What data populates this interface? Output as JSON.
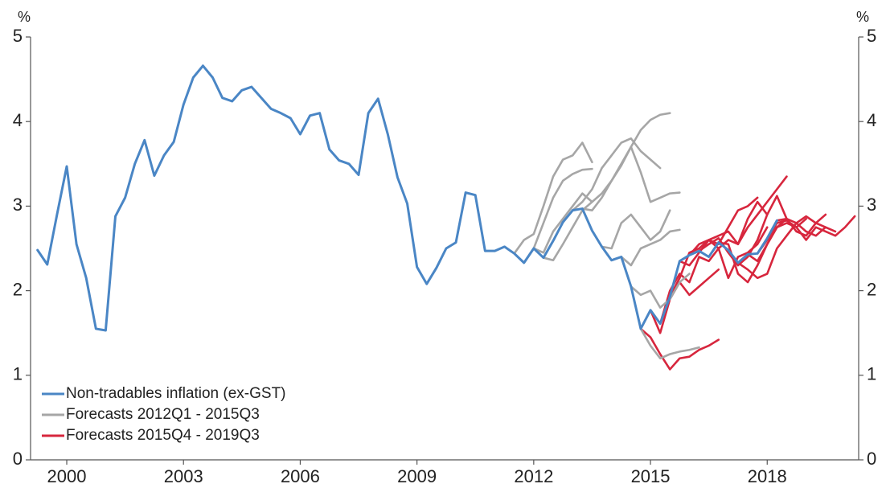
{
  "chart_data": {
    "type": "line",
    "y_unit": "%",
    "xlim": [
      1999.07,
      2020.35
    ],
    "xticks": [
      2000,
      2003,
      2006,
      2009,
      2012,
      2015,
      2018
    ],
    "ylim": [
      0,
      5
    ],
    "yticks": [
      0,
      1,
      2,
      3,
      4,
      5
    ],
    "grid": false,
    "legend": "lower left",
    "series": [
      {
        "name": "Non-tradables inflation (ex-GST)",
        "color": "#4a86c5",
        "x": [
          1999.25,
          1999.5,
          1999.75,
          2000,
          2000.25,
          2000.5,
          2000.75,
          2001,
          2001.25,
          2001.5,
          2001.75,
          2002,
          2002.25,
          2002.5,
          2002.75,
          2003,
          2003.25,
          2003.5,
          2003.75,
          2004,
          2004.25,
          2004.5,
          2004.75,
          2005,
          2005.25,
          2005.5,
          2005.75,
          2006,
          2006.25,
          2006.5,
          2006.75,
          2007,
          2007.25,
          2007.5,
          2007.75,
          2008,
          2008.25,
          2008.5,
          2008.75,
          2009,
          2009.25,
          2009.5,
          2009.75,
          2010,
          2010.25,
          2010.5,
          2010.75,
          2011,
          2011.25,
          2011.5,
          2011.75,
          2012,
          2012.25,
          2012.5,
          2012.75,
          2013,
          2013.25,
          2013.5,
          2013.75,
          2014,
          2014.25,
          2014.5,
          2014.75,
          2015,
          2015.25,
          2015.5,
          2015.75,
          2016,
          2016.25,
          2016.5,
          2016.75,
          2017,
          2017.25,
          2017.5,
          2017.75,
          2018,
          2018.25
        ],
        "values": [
          2.48,
          2.31,
          2.9,
          3.47,
          2.55,
          2.15,
          1.55,
          1.53,
          2.88,
          3.1,
          3.5,
          3.78,
          3.36,
          3.6,
          3.76,
          4.2,
          4.52,
          4.66,
          4.52,
          4.28,
          4.24,
          4.37,
          4.41,
          4.28,
          4.15,
          4.1,
          4.04,
          3.85,
          4.07,
          4.1,
          3.67,
          3.54,
          3.5,
          3.37,
          4.1,
          4.27,
          3.85,
          3.34,
          3.03,
          2.28,
          2.08,
          2.27,
          2.5,
          2.57,
          3.16,
          3.13,
          2.47,
          2.47,
          2.52,
          2.44,
          2.33,
          2.5,
          2.39,
          2.59,
          2.81,
          2.95,
          2.97,
          2.71,
          2.52,
          2.36,
          2.4,
          2.05,
          1.55,
          1.77,
          1.61,
          1.93,
          2.35,
          2.42,
          2.47,
          2.4,
          2.57,
          2.48,
          2.33,
          2.43,
          2.44,
          2.62,
          2.83
        ]
      },
      {
        "name": "Forecasts 2012Q1 - 2015Q3",
        "color": "#a6a6a6",
        "lines": [
          {
            "x": [
              2011.5,
              2011.75,
              2012,
              2012.25,
              2012.5,
              2012.75,
              2013,
              2013.25,
              2013.5
            ],
            "values": [
              2.44,
              2.6,
              2.67,
              3.0,
              3.35,
              3.55,
              3.6,
              3.75,
              3.52
            ]
          },
          {
            "x": [
              2011.75,
              2012,
              2012.25,
              2012.5,
              2012.75,
              2013,
              2013.25,
              2013.5
            ],
            "values": [
              2.33,
              2.5,
              2.8,
              3.1,
              3.3,
              3.38,
              3.43,
              3.44
            ]
          },
          {
            "x": [
              2012,
              2012.25,
              2012.5,
              2012.75,
              2013,
              2013.25,
              2013.5
            ],
            "values": [
              2.5,
              2.45,
              2.7,
              2.85,
              3.0,
              3.15,
              3.05
            ]
          },
          {
            "x": [
              2012.25,
              2012.5,
              2012.75,
              2013,
              2013.25,
              2013.5,
              2013.75,
              2014,
              2014.25,
              2014.5,
              2014.75,
              2015,
              2015.25,
              2015.5
            ],
            "values": [
              2.39,
              2.36,
              2.55,
              2.75,
              2.95,
              3.05,
              3.15,
              3.3,
              3.48,
              3.7,
              3.9,
              4.02,
              4.08,
              4.1
            ]
          },
          {
            "x": [
              2012.75,
              2013,
              2013.25,
              2013.5,
              2013.75,
              2014,
              2014.25,
              2014.5,
              2014.75,
              2015,
              2015.25
            ],
            "values": [
              2.81,
              2.95,
              3.05,
              3.2,
              3.45,
              3.6,
              3.75,
              3.8,
              3.65,
              3.55,
              3.45
            ]
          },
          {
            "x": [
              2013.25,
              2013.5,
              2013.75,
              2014,
              2014.25,
              2014.5,
              2014.75,
              2015,
              2015.25,
              2015.5,
              2015.75
            ],
            "values": [
              2.97,
              2.95,
              3.1,
              3.3,
              3.5,
              3.7,
              3.4,
              3.05,
              3.1,
              3.15,
              3.16
            ]
          },
          {
            "x": [
              2013.75,
              2014,
              2014.25,
              2014.5,
              2014.75,
              2015,
              2015.25,
              2015.5
            ],
            "values": [
              2.52,
              2.5,
              2.8,
              2.9,
              2.75,
              2.6,
              2.7,
              2.95
            ]
          },
          {
            "x": [
              2014.25,
              2014.5,
              2014.75,
              2015,
              2015.25,
              2015.5,
              2015.75
            ],
            "values": [
              2.4,
              2.3,
              2.5,
              2.55,
              2.6,
              2.7,
              2.72
            ]
          },
          {
            "x": [
              2014.5,
              2014.75,
              2015,
              2015.25,
              2015.5,
              2015.75,
              2016
            ],
            "values": [
              2.05,
              1.95,
              2.0,
              1.8,
              1.9,
              2.1,
              2.2
            ]
          },
          {
            "x": [
              2014.75,
              2015,
              2015.25,
              2015.5,
              2015.75,
              2016,
              2016.25
            ],
            "values": [
              1.55,
              1.35,
              1.2,
              1.25,
              1.28,
              1.3,
              1.33
            ]
          }
        ]
      },
      {
        "name": "Forecasts 2015Q4 - 2019Q3",
        "color": "#d7263d",
        "lines": [
          {
            "x": [
              2014.75,
              2015,
              2015.25,
              2015.5,
              2015.75,
              2016,
              2016.25,
              2016.5,
              2016.75
            ],
            "values": [
              1.55,
              1.45,
              1.25,
              1.07,
              1.2,
              1.22,
              1.3,
              1.35,
              1.42
            ]
          },
          {
            "x": [
              2015,
              2015.25,
              2015.5,
              2015.75,
              2016,
              2016.25,
              2016.5,
              2016.75
            ],
            "values": [
              1.77,
              1.5,
              1.9,
              2.1,
              1.95,
              2.05,
              2.15,
              2.25
            ]
          },
          {
            "x": [
              2015.25,
              2015.5,
              2015.75,
              2016,
              2016.25,
              2016.5,
              2016.75,
              2017,
              2017.25,
              2017.5,
              2017.75,
              2018,
              2018.25,
              2018.5
            ],
            "values": [
              1.61,
              2.0,
              2.2,
              2.1,
              2.4,
              2.35,
              2.5,
              2.6,
              2.55,
              2.75,
              2.9,
              3.05,
              3.2,
              3.35
            ]
          },
          {
            "x": [
              2015.5,
              2015.75,
              2016,
              2016.25,
              2016.5,
              2016.75,
              2017,
              2017.25,
              2017.5,
              2017.75
            ],
            "values": [
              1.93,
              2.15,
              2.45,
              2.5,
              2.6,
              2.55,
              2.75,
              2.95,
              3.0,
              3.1
            ]
          },
          {
            "x": [
              2015.75,
              2016,
              2016.25,
              2016.5,
              2016.75,
              2017,
              2017.25,
              2017.5,
              2017.75,
              2018
            ],
            "values": [
              2.35,
              2.3,
              2.45,
              2.6,
              2.65,
              2.7,
              2.55,
              2.85,
              3.05,
              2.9
            ]
          },
          {
            "x": [
              2016,
              2016.25,
              2016.5,
              2016.75,
              2017,
              2017.25,
              2017.5,
              2017.75,
              2018
            ],
            "values": [
              2.42,
              2.55,
              2.6,
              2.5,
              2.15,
              2.4,
              2.45,
              2.55,
              2.75
            ]
          },
          {
            "x": [
              2016.25,
              2016.5,
              2016.75,
              2017,
              2017.25,
              2017.5,
              2017.75,
              2018,
              2018.25,
              2018.5
            ],
            "values": [
              2.47,
              2.55,
              2.62,
              2.45,
              2.3,
              2.4,
              2.6,
              2.9,
              3.12,
              2.85
            ]
          },
          {
            "x": [
              2016.75,
              2017,
              2017.25,
              2017.5,
              2017.75,
              2018,
              2018.25,
              2018.5,
              2018.75,
              2019
            ],
            "values": [
              2.57,
              2.55,
              2.2,
              2.1,
              2.3,
              2.55,
              2.75,
              2.8,
              2.75,
              2.85
            ]
          },
          {
            "x": [
              2017.25,
              2017.5,
              2017.75,
              2018,
              2018.25,
              2018.5,
              2018.75,
              2019,
              2019.25,
              2019.5
            ],
            "values": [
              2.33,
              2.25,
              2.15,
              2.2,
              2.5,
              2.65,
              2.8,
              2.88,
              2.8,
              2.9
            ]
          },
          {
            "x": [
              2017.5,
              2017.75,
              2018,
              2018.25,
              2018.5,
              2018.75,
              2019,
              2019.25,
              2019.5
            ],
            "values": [
              2.43,
              2.35,
              2.55,
              2.75,
              2.85,
              2.7,
              2.65,
              2.8,
              2.75
            ]
          },
          {
            "x": [
              2017.75,
              2018,
              2018.25,
              2018.5,
              2018.75,
              2019,
              2019.25,
              2019.5,
              2019.75,
              2020,
              2020.25
            ],
            "values": [
              2.44,
              2.6,
              2.8,
              2.83,
              2.75,
              2.6,
              2.75,
              2.7,
              2.65,
              2.75,
              2.88
            ]
          },
          {
            "x": [
              2018.25,
              2018.5,
              2018.75,
              2019,
              2019.25,
              2019.5,
              2019.75
            ],
            "values": [
              2.83,
              2.85,
              2.8,
              2.7,
              2.65,
              2.75,
              2.7
            ]
          }
        ]
      }
    ]
  }
}
